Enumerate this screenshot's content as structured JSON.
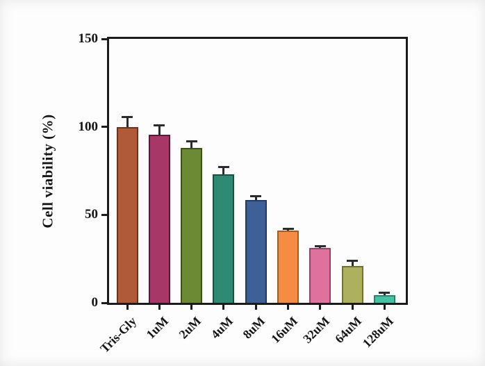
{
  "figure": {
    "background_color": "#fdfdfd",
    "axis_color": "#1b1b1b",
    "text_color": "#151515"
  },
  "chart_data": {
    "type": "bar",
    "title": "",
    "xlabel": "",
    "ylabel": "Cell viability (%)",
    "ylim": [
      0,
      150
    ],
    "yticks": [
      0,
      50,
      100,
      150
    ],
    "grid": false,
    "legend_position": "none",
    "frame": "full-box",
    "categories": [
      "Tris-Gly",
      "1uM",
      "2uM",
      "4uM",
      "8uM",
      "16uM",
      "32uM",
      "64uM",
      "128uM"
    ],
    "values": [
      100,
      95.5,
      88,
      73,
      58.5,
      41,
      31,
      21,
      4.5
    ],
    "errors": [
      5.5,
      5,
      3.5,
      4,
      2,
      1,
      1,
      2.5,
      1
    ],
    "error_direction": "plus-only",
    "error_bar_color": "#2b2b2b",
    "bar_fill_colors": [
      "#b15a37",
      "#a63767",
      "#6c8a33",
      "#2f8a73",
      "#3d6099",
      "#f68b44",
      "#df719d",
      "#adb05c",
      "#45c2a2"
    ],
    "bar_border_colors": [
      "#6e3018",
      "#5e1638",
      "#3c5214",
      "#11553f",
      "#1e3a66",
      "#a85a1c",
      "#9c3f66",
      "#70712c",
      "#1f8a6b"
    ]
  }
}
